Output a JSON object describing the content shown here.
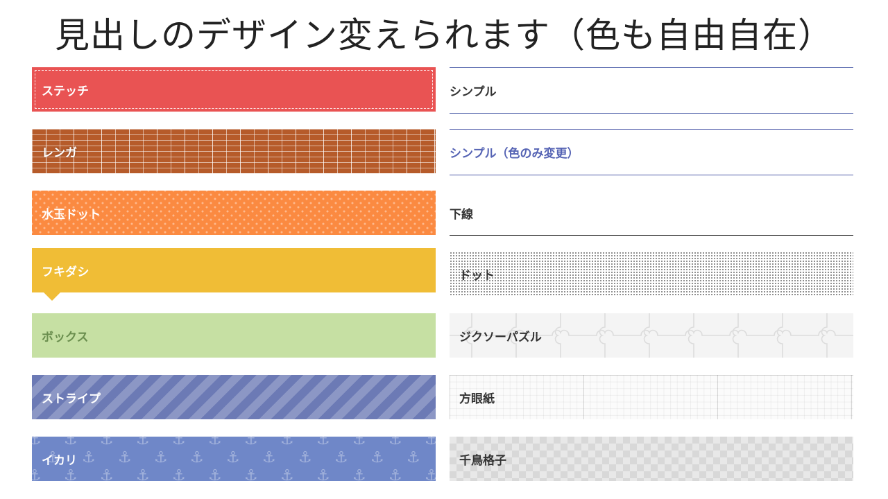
{
  "title": "見出しのデザイン変えられます（色も自由自在）",
  "left_headings": [
    {
      "label": "ステッチ",
      "color": "#e95353"
    },
    {
      "label": "レンガ",
      "color": "#b65b2a"
    },
    {
      "label": "水玉ドット",
      "color": "#fb8a41"
    },
    {
      "label": "フキダシ",
      "color": "#f0bd36"
    },
    {
      "label": "ボックス",
      "color": "#c6e0a3"
    },
    {
      "label": "ストライプ",
      "color": "#6c7ab5"
    },
    {
      "label": "イカリ",
      "color": "#6f87c8"
    }
  ],
  "right_headings": [
    {
      "label": "シンプル",
      "color": "#5b6bb0"
    },
    {
      "label": "シンプル（色のみ変更）",
      "color": "#4d5aa8"
    },
    {
      "label": "下線",
      "color": "#222222"
    },
    {
      "label": "ドット",
      "color": "#555555"
    },
    {
      "label": "ジクソーパズル",
      "color": "#f4f4f4"
    },
    {
      "label": "方眼紙",
      "color": "#fbfbfb"
    },
    {
      "label": "千鳥格子",
      "color": "#d8d8d8"
    }
  ],
  "icons": {
    "anchor": "anchor-icon"
  }
}
